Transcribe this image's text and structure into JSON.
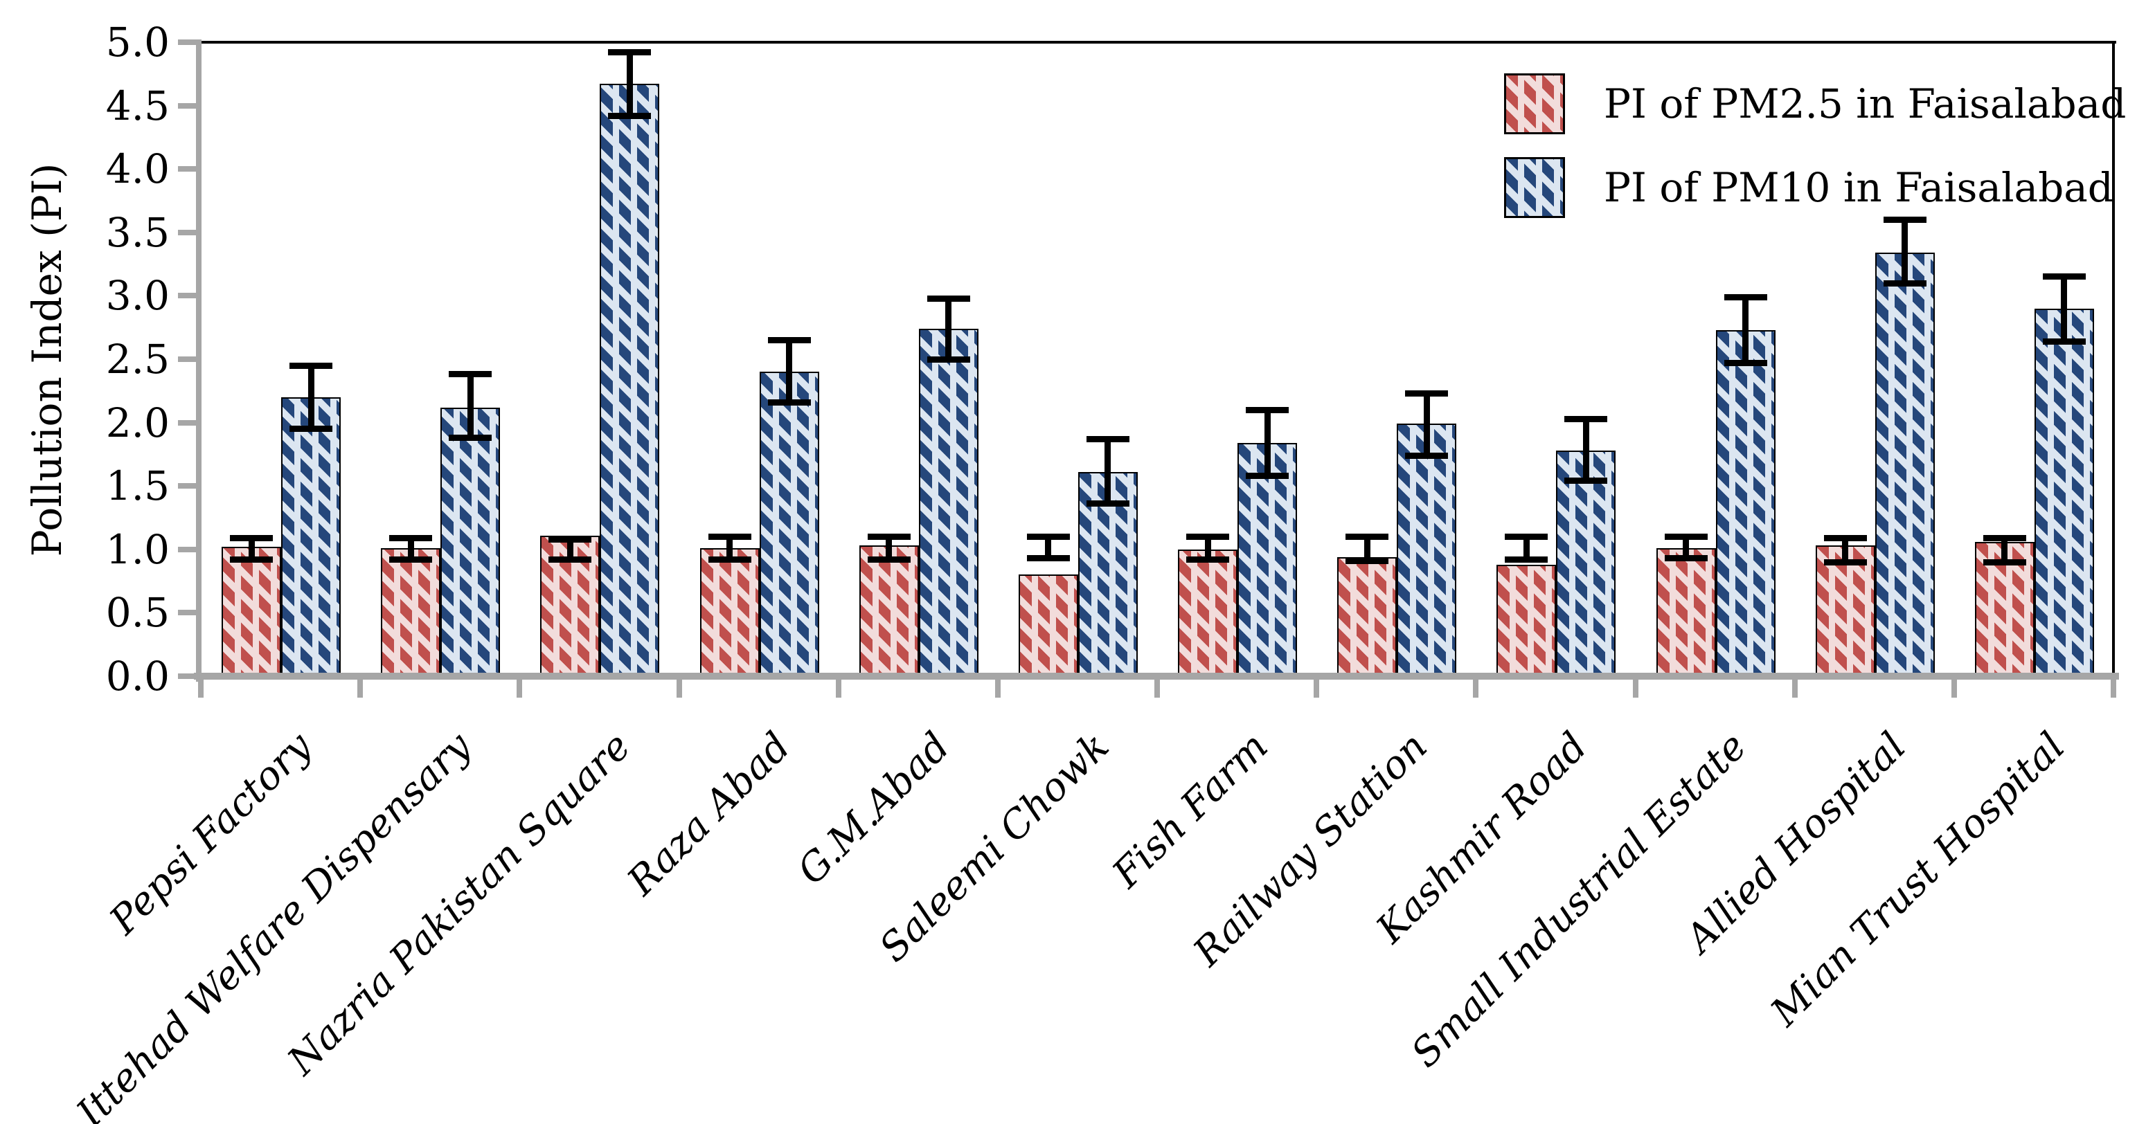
{
  "axes": {
    "y_title": "Pollution Index (PI)",
    "y_ticks": [
      "0.0",
      "0.5",
      "1.0",
      "1.5",
      "2.0",
      "2.5",
      "3.0",
      "3.5",
      "4.0",
      "4.5",
      "5.0"
    ],
    "y_tick_step": 0.5
  },
  "legend": [
    {
      "label": "PI of PM2.5 in Faisalabad",
      "series": "pm25"
    },
    {
      "label": "PI of PM10 in Faisalabad",
      "series": "pm10"
    }
  ],
  "colors": {
    "pm25_hatch": "#C0504D",
    "pm25_bg": "#F2DCDB",
    "pm10_hatch": "#25477B",
    "pm10_bg": "#DCE6F1",
    "axis_gray": "#A6A6A6",
    "frame_black": "#000000",
    "error_bar": "#000000"
  },
  "chart_data": {
    "type": "bar",
    "title": "",
    "xlabel": "",
    "ylabel": "Pollution Index (PI)",
    "ylim": [
      0,
      5
    ],
    "ytick_step": 0.5,
    "grid": false,
    "legend_position": "top-right",
    "categories": [
      "Pepsi Factory",
      "Ittehad Welfare Dispensary",
      "Nazria Pakistan Square",
      "Raza Abad",
      "G.M.Abad",
      "Saleemi Chowk",
      "Fish Farm",
      "Railway Station",
      "Kashmir Road",
      "Small Industrial Estate",
      "Allied Hospital",
      "Mian Trust Hospital"
    ],
    "series": [
      {
        "name": "PI of PM2.5 in Faisalabad",
        "values": [
          1.02,
          1.01,
          1.11,
          1.01,
          1.03,
          0.8,
          1.0,
          0.94,
          0.88,
          1.01,
          1.03,
          1.06
        ],
        "err_lo": [
          0.92,
          0.92,
          0.92,
          0.92,
          0.92,
          0.93,
          0.92,
          0.91,
          0.92,
          0.93,
          0.9,
          0.9
        ],
        "err_hi": [
          1.09,
          1.09,
          1.08,
          1.1,
          1.1,
          1.1,
          1.1,
          1.1,
          1.1,
          1.1,
          1.09,
          1.09
        ]
      },
      {
        "name": "PI of PM10 in Faisalabad",
        "values": [
          2.2,
          2.12,
          4.67,
          2.4,
          2.74,
          1.61,
          1.84,
          1.99,
          1.78,
          2.73,
          3.34,
          2.9
        ],
        "err_lo": [
          1.95,
          1.88,
          4.42,
          2.16,
          2.5,
          1.36,
          1.58,
          1.74,
          1.54,
          2.47,
          3.1,
          2.64
        ],
        "err_hi": [
          2.45,
          2.38,
          4.92,
          2.65,
          2.98,
          1.87,
          2.1,
          2.23,
          2.03,
          2.99,
          3.6,
          3.15
        ]
      }
    ]
  }
}
